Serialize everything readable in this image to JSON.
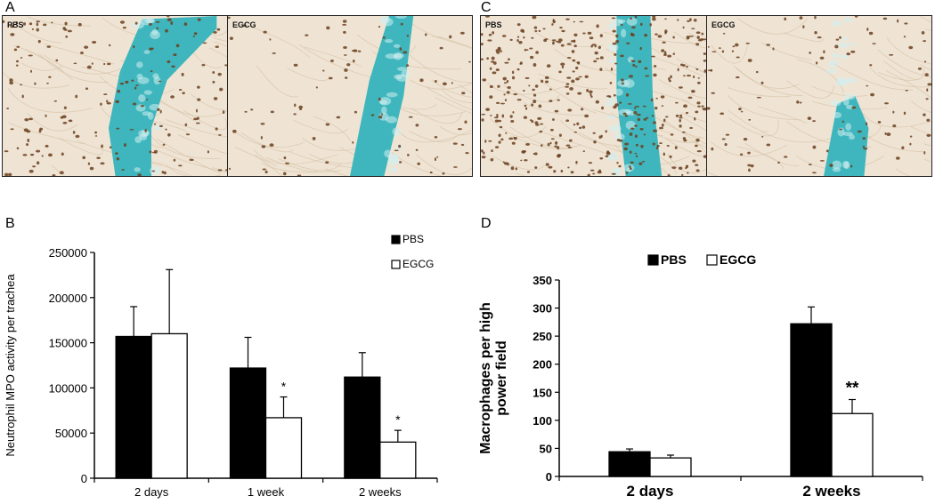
{
  "figure": {
    "panels": {
      "A": {
        "letter": "A",
        "images": [
          {
            "label": "PBS"
          },
          {
            "label": "EGCG"
          }
        ]
      },
      "B": {
        "letter": "B"
      },
      "C": {
        "letter": "C",
        "images": [
          {
            "label": "PBS"
          },
          {
            "label": "EGCG"
          }
        ]
      },
      "D": {
        "letter": "D"
      }
    },
    "colors": {
      "cartilage": "#3fb6bd",
      "tissue": "#efe4d4",
      "cells": "#6b3f1f",
      "bar_pbs": "#000000",
      "bar_egcg": "#ffffff"
    }
  },
  "chart_data": [
    {
      "type": "bar",
      "panel": "B",
      "title": "",
      "xlabel": "",
      "ylabel": "Neutrophil MPO activity per trachea",
      "categories": [
        "2 days",
        "1 week",
        "2 weeks"
      ],
      "series": [
        {
          "name": "PBS",
          "values": [
            157000,
            122000,
            112000
          ],
          "errors": [
            33000,
            34000,
            27000
          ]
        },
        {
          "name": "EGCG",
          "values": [
            160000,
            67000,
            40000
          ],
          "errors": [
            71000,
            23000,
            13000
          ]
        }
      ],
      "significance": [
        "",
        "*",
        "*"
      ],
      "ylim": [
        0,
        250000
      ],
      "yticks": [
        "0",
        "50000",
        "100000",
        "150000",
        "200000",
        "250000"
      ],
      "legend_position": "top-right",
      "grid": false
    },
    {
      "type": "bar",
      "panel": "D",
      "title": "",
      "xlabel": "",
      "ylabel": "Macrophages per high power field",
      "categories": [
        "2 days",
        "2 weeks"
      ],
      "series": [
        {
          "name": "PBS",
          "values": [
            44,
            272
          ],
          "errors": [
            5,
            30
          ]
        },
        {
          "name": "EGCG",
          "values": [
            33,
            112
          ],
          "errors": [
            5,
            25
          ]
        }
      ],
      "significance": [
        "",
        "**"
      ],
      "ylim": [
        0,
        350
      ],
      "yticks": [
        "0",
        "50",
        "100",
        "150",
        "200",
        "250",
        "300",
        "350"
      ],
      "legend_position": "top-center",
      "grid": false
    }
  ]
}
